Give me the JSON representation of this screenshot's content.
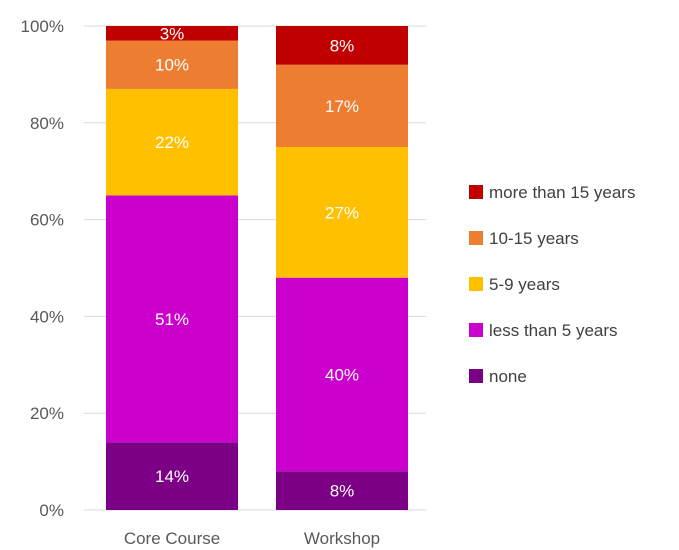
{
  "chart_data": {
    "type": "bar",
    "stacked": true,
    "percent_stacked": true,
    "categories": [
      "Core Course",
      "Workshop"
    ],
    "series": [
      {
        "name": "none",
        "values": [
          14,
          8
        ],
        "labels": [
          "14%",
          "8%"
        ],
        "color": "#7b0085"
      },
      {
        "name": "less than 5 years",
        "values": [
          51,
          40
        ],
        "labels": [
          "51%",
          "40%"
        ],
        "color": "#cc00cc"
      },
      {
        "name": "5-9 years",
        "values": [
          22,
          27
        ],
        "labels": [
          "22%",
          "27%"
        ],
        "color": "#ffc000"
      },
      {
        "name": "10-15 years",
        "values": [
          10,
          17
        ],
        "labels": [
          "10%",
          "17%"
        ],
        "color": "#ed7d31"
      },
      {
        "name": "more than 15 years",
        "values": [
          3,
          8
        ],
        "labels": [
          "3%",
          "8%"
        ],
        "color": "#c00000"
      }
    ],
    "ylim": [
      0,
      100
    ],
    "y_ticks": [
      "0%",
      "20%",
      "40%",
      "60%",
      "80%",
      "100%"
    ],
    "grid": true,
    "legend_position": "right",
    "legend_order": [
      "more than 15 years",
      "10-15 years",
      "5-9 years",
      "less than 5 years",
      "none"
    ]
  }
}
